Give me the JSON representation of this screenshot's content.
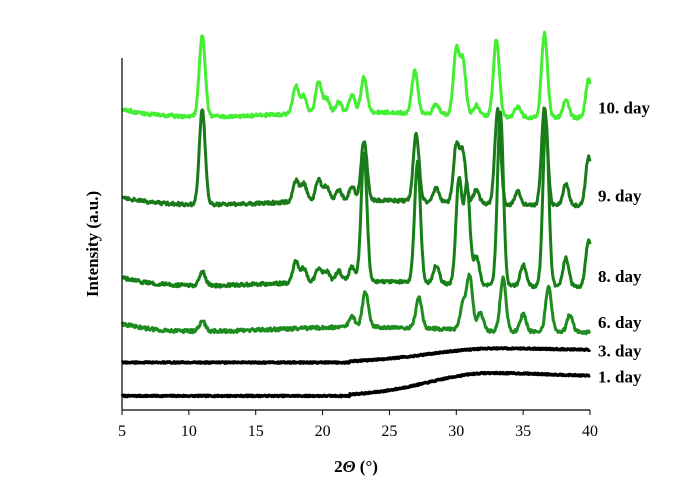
{
  "chart_data": {
    "type": "line",
    "title": "",
    "xlabel_prefix": "2",
    "xlabel_symbol": "Θ",
    "xlabel_unit": " (°)",
    "ylabel": "Intensity (a.u.)",
    "xlim": [
      5,
      40
    ],
    "ylim": [
      0,
      100
    ],
    "x_ticks": [
      5,
      10,
      15,
      20,
      25,
      30,
      35,
      40
    ],
    "y_ticks_shown": false,
    "grid": false,
    "legend": "none",
    "peak_width_deg": 0.22,
    "series": [
      {
        "name": "1. day",
        "color": "#000000",
        "baseline": 4,
        "amorphous_hump": {
          "center": 32.5,
          "height": 6.5,
          "width": 4.5,
          "rise_start": 22
        },
        "peaks": []
      },
      {
        "name": "3. day",
        "color": "#000000",
        "baseline": 13.5,
        "amorphous_hump": {
          "center": 33,
          "height": 4,
          "width": 5,
          "rise_start": 22
        },
        "peaks": []
      },
      {
        "name": "6. day",
        "color": "#1e8c1e",
        "baseline": 22,
        "amorphous_hump": null,
        "peaks": [
          {
            "x": 11.0,
            "h": 3
          },
          {
            "x": 22.2,
            "h": 3
          },
          {
            "x": 23.2,
            "h": 10
          },
          {
            "x": 27.2,
            "h": 9
          },
          {
            "x": 30.5,
            "h": 7
          },
          {
            "x": 31.0,
            "h": 15
          },
          {
            "x": 31.8,
            "h": 5
          },
          {
            "x": 33.5,
            "h": 15
          },
          {
            "x": 35.0,
            "h": 5
          },
          {
            "x": 36.9,
            "h": 13
          },
          {
            "x": 38.5,
            "h": 5
          }
        ]
      },
      {
        "name": "8. day",
        "color": "#158015",
        "baseline": 35,
        "amorphous_hump": null,
        "peaks": [
          {
            "x": 11.0,
            "h": 4
          },
          {
            "x": 18.0,
            "h": 6
          },
          {
            "x": 18.6,
            "h": 4
          },
          {
            "x": 19.7,
            "h": 4
          },
          {
            "x": 20.3,
            "h": 3
          },
          {
            "x": 21.2,
            "h": 3
          },
          {
            "x": 22.2,
            "h": 4
          },
          {
            "x": 23.1,
            "h": 36
          },
          {
            "x": 27.1,
            "h": 34
          },
          {
            "x": 28.5,
            "h": 5
          },
          {
            "x": 30.2,
            "h": 30
          },
          {
            "x": 30.8,
            "h": 28
          },
          {
            "x": 31.5,
            "h": 8
          },
          {
            "x": 33.3,
            "h": 49
          },
          {
            "x": 35.0,
            "h": 6
          },
          {
            "x": 36.7,
            "h": 47
          },
          {
            "x": 38.2,
            "h": 8
          },
          {
            "x": 39.9,
            "h": 13
          }
        ]
      },
      {
        "name": "9. day",
        "color": "#1a7a1a",
        "baseline": 58,
        "amorphous_hump": null,
        "peaks": [
          {
            "x": 11.0,
            "h": 27
          },
          {
            "x": 18.0,
            "h": 6
          },
          {
            "x": 18.6,
            "h": 5
          },
          {
            "x": 19.7,
            "h": 6
          },
          {
            "x": 20.3,
            "h": 4
          },
          {
            "x": 21.2,
            "h": 3
          },
          {
            "x": 22.2,
            "h": 4
          },
          {
            "x": 23.1,
            "h": 17
          },
          {
            "x": 27.0,
            "h": 19
          },
          {
            "x": 28.5,
            "h": 4
          },
          {
            "x": 30.0,
            "h": 16
          },
          {
            "x": 30.5,
            "h": 14
          },
          {
            "x": 31.5,
            "h": 4
          },
          {
            "x": 33.1,
            "h": 27
          },
          {
            "x": 34.6,
            "h": 4
          },
          {
            "x": 36.6,
            "h": 28
          },
          {
            "x": 38.2,
            "h": 6
          },
          {
            "x": 39.9,
            "h": 14
          }
        ]
      },
      {
        "name": "10. day",
        "color": "#44ee33",
        "baseline": 83,
        "amorphous_hump": null,
        "peaks": [
          {
            "x": 11.0,
            "h": 23
          },
          {
            "x": 18.0,
            "h": 8
          },
          {
            "x": 18.6,
            "h": 5
          },
          {
            "x": 19.7,
            "h": 9
          },
          {
            "x": 20.3,
            "h": 4
          },
          {
            "x": 21.2,
            "h": 3
          },
          {
            "x": 22.2,
            "h": 5
          },
          {
            "x": 23.1,
            "h": 10
          },
          {
            "x": 26.9,
            "h": 12
          },
          {
            "x": 28.5,
            "h": 3
          },
          {
            "x": 30.0,
            "h": 18
          },
          {
            "x": 30.5,
            "h": 15
          },
          {
            "x": 31.5,
            "h": 3
          },
          {
            "x": 33.0,
            "h": 22
          },
          {
            "x": 34.6,
            "h": 3
          },
          {
            "x": 36.6,
            "h": 24
          },
          {
            "x": 38.2,
            "h": 5
          },
          {
            "x": 39.9,
            "h": 11
          }
        ]
      }
    ]
  }
}
